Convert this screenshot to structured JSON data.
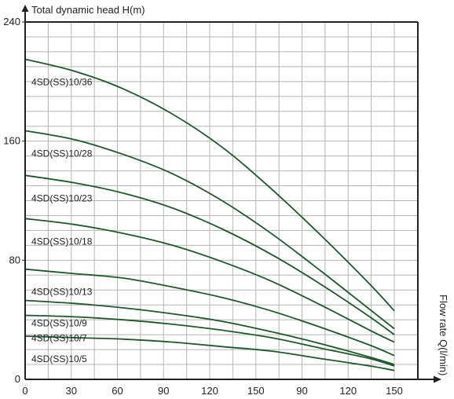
{
  "chart_data": {
    "type": "line",
    "title": "",
    "ylabel": "Total dynamic head H(m)",
    "xlabel": "Flow rate Q(l/min)",
    "ylim": [
      0,
      240
    ],
    "xlim": [
      0,
      150
    ],
    "y_ticks": [
      "0",
      "80",
      "160",
      "240"
    ],
    "x_ticks": [
      "0",
      "30",
      "60",
      "90",
      "120",
      "150",
      "90",
      "120",
      "150"
    ],
    "grid": true,
    "line_color": "#1a5a2a",
    "series": [
      {
        "name": "4SD(SS)10/36",
        "points": [
          [
            0,
            215
          ],
          [
            20,
            207
          ],
          [
            40,
            195
          ],
          [
            60,
            178
          ],
          [
            80,
            156
          ],
          [
            100,
            128
          ],
          [
            120,
            97
          ],
          [
            140,
            64
          ],
          [
            150,
            46
          ]
        ]
      },
      {
        "name": "4SD(SS)10/28",
        "points": [
          [
            0,
            167
          ],
          [
            20,
            161
          ],
          [
            40,
            151
          ],
          [
            60,
            138
          ],
          [
            80,
            120
          ],
          [
            100,
            98
          ],
          [
            120,
            73
          ],
          [
            140,
            47
          ],
          [
            150,
            34
          ]
        ]
      },
      {
        "name": "4SD(SS)10/23",
        "points": [
          [
            0,
            137
          ],
          [
            20,
            132
          ],
          [
            40,
            125
          ],
          [
            60,
            115
          ],
          [
            80,
            101
          ],
          [
            100,
            84
          ],
          [
            120,
            64
          ],
          [
            140,
            42
          ],
          [
            150,
            30
          ]
        ]
      },
      {
        "name": "4SD(SS)10/18",
        "points": [
          [
            0,
            108
          ],
          [
            20,
            104
          ],
          [
            40,
            98
          ],
          [
            60,
            90
          ],
          [
            80,
            79
          ],
          [
            100,
            66
          ],
          [
            120,
            50
          ],
          [
            140,
            33
          ],
          [
            150,
            25
          ]
        ]
      },
      {
        "name": "4SD(SS)10/13",
        "points": [
          [
            0,
            74
          ],
          [
            20,
            71
          ],
          [
            40,
            68
          ],
          [
            60,
            62
          ],
          [
            80,
            55
          ],
          [
            100,
            46
          ],
          [
            120,
            35
          ],
          [
            140,
            23
          ],
          [
            150,
            16
          ]
        ]
      },
      {
        "name": "4SD(SS)10/9",
        "points": [
          [
            0,
            53
          ],
          [
            20,
            51
          ],
          [
            40,
            48
          ],
          [
            60,
            44
          ],
          [
            80,
            39
          ],
          [
            100,
            32
          ],
          [
            120,
            24
          ],
          [
            140,
            15
          ],
          [
            150,
            10
          ]
        ]
      },
      {
        "name": "4SD(SS)10/7",
        "points": [
          [
            0,
            43
          ],
          [
            20,
            42
          ],
          [
            40,
            40
          ],
          [
            60,
            37
          ],
          [
            80,
            33
          ],
          [
            100,
            28
          ],
          [
            120,
            21
          ],
          [
            140,
            14
          ],
          [
            150,
            9
          ]
        ]
      },
      {
        "name": "4SD(SS)10/5",
        "points": [
          [
            0,
            29
          ],
          [
            20,
            28
          ],
          [
            40,
            27
          ],
          [
            60,
            25
          ],
          [
            80,
            22
          ],
          [
            100,
            19
          ],
          [
            120,
            14
          ],
          [
            140,
            9
          ],
          [
            150,
            6
          ]
        ]
      }
    ]
  }
}
